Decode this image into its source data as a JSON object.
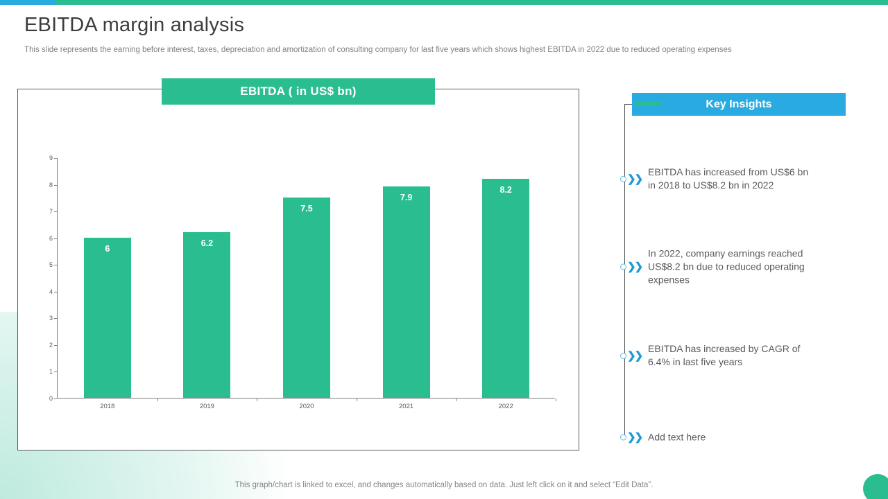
{
  "slide": {
    "title": "EBITDA margin analysis",
    "subtitle": "This slide represents the earning before interest, taxes, depreciation and amortization of consulting company for last five years which shows highest EBITDA in 2022 due to reduced operating expenses",
    "footer": "This graph/chart is linked to excel, and changes automatically based on data. Just left click on it and select “Edit Data”."
  },
  "colors": {
    "accent_green": "#2abd90",
    "accent_blue": "#29abe2",
    "chevron_blue": "#1d9ad3",
    "text_dark": "#3d3d3d",
    "text_gray": "#595959"
  },
  "chart_data": {
    "type": "bar",
    "title": "EBITDA ( in US$ bn)",
    "categories": [
      "2018",
      "2019",
      "2020",
      "2021",
      "2022"
    ],
    "values": [
      6,
      6.2,
      7.5,
      7.9,
      8.2
    ],
    "bar_labels": [
      "6",
      "6.2",
      "7.5",
      "7.9",
      "8.2"
    ],
    "xlabel": "",
    "ylabel": "",
    "ylim": [
      0,
      9
    ],
    "ytick_step": 1,
    "grid": false,
    "legend_position": "none",
    "bar_color": "#2abd90",
    "bar_label_color": "#ffffff"
  },
  "key_insights": {
    "header": "Key Insights",
    "items": [
      {
        "text": "EBITDA has increased from US$6 bn in 2018 to US$8.2 bn in 2022"
      },
      {
        "text": "In 2022, company earnings reached US$8.2 bn due to reduced operating expenses"
      },
      {
        "text": "EBITDA has increased by CAGR of 6.4% in last five years"
      },
      {
        "text": "Add text here"
      }
    ]
  }
}
